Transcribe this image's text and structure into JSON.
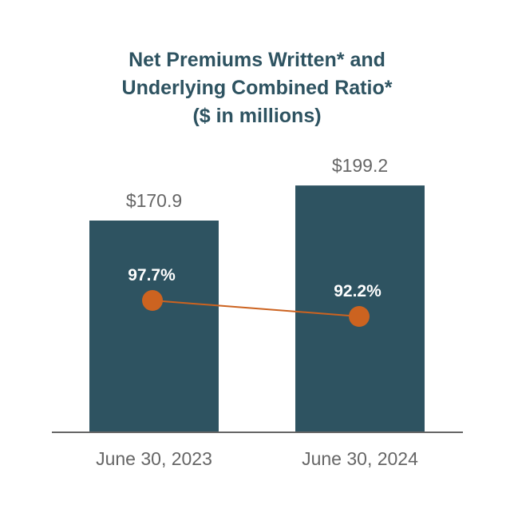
{
  "title": {
    "line1": "Net Premiums Written* and",
    "line2": "Underlying Combined Ratio*",
    "line3": "($ in millions)"
  },
  "colors": {
    "bar": "#2e5361",
    "line": "#cc6320",
    "title": "#2e5361",
    "label": "#666666",
    "axis": "#666666"
  },
  "chart_data": {
    "type": "bar",
    "title": "Net Premiums Written* and Underlying Combined Ratio* ($ in millions)",
    "categories": [
      "June 30, 2023",
      "June 30, 2024"
    ],
    "series": [
      {
        "name": "Net Premiums Written*",
        "type": "bar",
        "values": [
          170.9,
          199.2
        ],
        "labels": [
          "$170.9",
          "$199.2"
        ]
      },
      {
        "name": "Underlying Combined Ratio*",
        "type": "line",
        "values": [
          97.7,
          92.2
        ],
        "labels": [
          "97.7%",
          "92.2%"
        ]
      }
    ],
    "xlabel": "",
    "ylabel": "",
    "legend": "none",
    "grid": false
  }
}
